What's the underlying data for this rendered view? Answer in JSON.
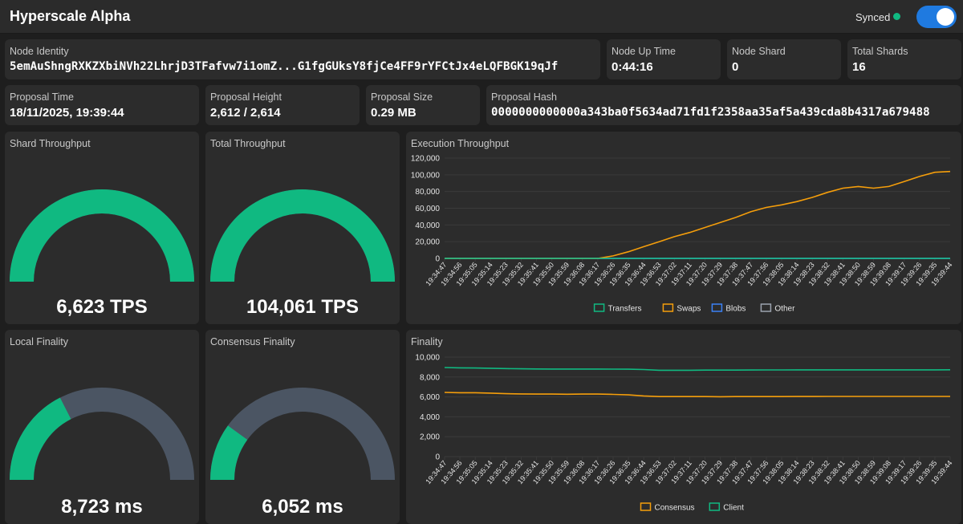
{
  "header": {
    "title": "Hyperscale Alpha",
    "sync_status": "Synced"
  },
  "colors": {
    "green": "#10b981",
    "orange": "#f59e0b",
    "blue": "#3b82f6",
    "slate": "#4b5563",
    "gray": "#9ca3af"
  },
  "info": {
    "node_identity": {
      "label": "Node Identity",
      "value": "5emAuShngRXKZXbiNVh22LhrjD3TFafvw7i1omZ...G1fgGUksY8fjCe4FF9rYFCtJx4eLQFBGK19qJf"
    },
    "node_up_time": {
      "label": "Node Up Time",
      "value": "0:44:16"
    },
    "node_shard": {
      "label": "Node Shard",
      "value": "0"
    },
    "total_shards": {
      "label": "Total Shards",
      "value": "16"
    },
    "proposal_time": {
      "label": "Proposal Time",
      "value": "18/11/2025, 19:39:44"
    },
    "proposal_height": {
      "label": "Proposal Height",
      "value": "2,612 / 2,614"
    },
    "proposal_size": {
      "label": "Proposal Size",
      "value": "0.29 MB"
    },
    "proposal_hash": {
      "label": "Proposal Hash",
      "value": "0000000000000a343ba0f5634ad71fd1f2358aa35af5a439cda8b4317a679488"
    }
  },
  "gauges": {
    "shard_throughput": {
      "label": "Shard Throughput",
      "value": "6,623 TPS",
      "fraction": 1.0
    },
    "total_throughput": {
      "label": "Total Throughput",
      "value": "104,061 TPS",
      "fraction": 1.0
    },
    "local_finality": {
      "label": "Local Finality",
      "value": "8,723 ms",
      "fraction": 0.35
    },
    "consensus_finality": {
      "label": "Consensus Finality",
      "value": "6,052 ms",
      "fraction": 0.2
    }
  },
  "chart_data": [
    {
      "type": "line",
      "title": "Execution Throughput",
      "ylim": [
        0,
        120000
      ],
      "yticks": [
        "0",
        "20,000",
        "40,000",
        "60,000",
        "80,000",
        "100,000",
        "120,000"
      ],
      "categories": [
        "19:34:47",
        "19:34:56",
        "19:35:05",
        "19:35:14",
        "19:35:23",
        "19:35:32",
        "19:35:41",
        "19:35:50",
        "19:35:59",
        "19:36:08",
        "19:36:17",
        "19:36:26",
        "19:36:35",
        "19:36:44",
        "19:36:53",
        "19:37:02",
        "19:37:11",
        "19:37:20",
        "19:37:29",
        "19:37:38",
        "19:37:47",
        "19:37:56",
        "19:38:05",
        "19:38:14",
        "19:38:23",
        "19:38:32",
        "19:38:41",
        "19:38:50",
        "19:38:59",
        "19:39:08",
        "19:39:17",
        "19:39:26",
        "19:39:35",
        "19:39:44"
      ],
      "series": [
        {
          "name": "Transfers",
          "color": "#10b981",
          "values": [
            0,
            0,
            0,
            0,
            0,
            0,
            0,
            0,
            0,
            0,
            0,
            0,
            0,
            0,
            0,
            0,
            0,
            0,
            0,
            0,
            0,
            0,
            0,
            0,
            0,
            0,
            0,
            0,
            0,
            0,
            0,
            0,
            0,
            0
          ]
        },
        {
          "name": "Swaps",
          "color": "#f59e0b",
          "values": [
            0,
            0,
            0,
            0,
            0,
            0,
            0,
            0,
            0,
            0,
            0,
            3000,
            8000,
            14000,
            20000,
            26000,
            31000,
            37000,
            43000,
            49000,
            56000,
            61000,
            64000,
            68000,
            73000,
            79000,
            84000,
            86000,
            84000,
            86000,
            92000,
            98000,
            103000,
            104000
          ]
        },
        {
          "name": "Blobs",
          "color": "#3b82f6",
          "values": [
            0,
            0,
            0,
            0,
            0,
            0,
            0,
            0,
            0,
            0,
            0,
            0,
            0,
            0,
            0,
            0,
            0,
            0,
            0,
            0,
            0,
            0,
            0,
            0,
            0,
            0,
            0,
            0,
            0,
            0,
            0,
            0,
            0,
            0
          ]
        },
        {
          "name": "Other",
          "color": "#9ca3af",
          "values": [
            0,
            0,
            0,
            0,
            0,
            0,
            0,
            0,
            0,
            0,
            0,
            0,
            0,
            0,
            0,
            0,
            0,
            0,
            0,
            0,
            0,
            0,
            0,
            0,
            0,
            0,
            0,
            0,
            0,
            0,
            0,
            0,
            0,
            0
          ]
        }
      ]
    },
    {
      "type": "line",
      "title": "Finality",
      "ylim": [
        0,
        10000
      ],
      "yticks": [
        "0",
        "2,000",
        "4,000",
        "6,000",
        "8,000",
        "10,000"
      ],
      "categories": [
        "19:34:47",
        "19:34:56",
        "19:35:05",
        "19:35:14",
        "19:35:23",
        "19:35:32",
        "19:35:41",
        "19:35:50",
        "19:35:59",
        "19:36:08",
        "19:36:17",
        "19:36:26",
        "19:36:35",
        "19:36:44",
        "19:36:53",
        "19:37:02",
        "19:37:11",
        "19:37:20",
        "19:37:29",
        "19:37:38",
        "19:37:47",
        "19:37:56",
        "19:38:05",
        "19:38:14",
        "19:38:23",
        "19:38:32",
        "19:38:41",
        "19:38:50",
        "19:38:59",
        "19:39:08",
        "19:39:17",
        "19:39:26",
        "19:39:35",
        "19:39:44"
      ],
      "series": [
        {
          "name": "Consensus",
          "color": "#f59e0b",
          "values": [
            6450,
            6420,
            6420,
            6380,
            6320,
            6300,
            6280,
            6280,
            6270,
            6280,
            6280,
            6250,
            6200,
            6100,
            6030,
            6030,
            6030,
            6030,
            6020,
            6030,
            6030,
            6030,
            6030,
            6040,
            6040,
            6050,
            6050,
            6050,
            6050,
            6050,
            6050,
            6050,
            6050,
            6052
          ]
        },
        {
          "name": "Client",
          "color": "#10b981",
          "values": [
            8950,
            8920,
            8900,
            8880,
            8850,
            8820,
            8810,
            8800,
            8800,
            8800,
            8800,
            8790,
            8780,
            8750,
            8680,
            8680,
            8680,
            8690,
            8690,
            8690,
            8700,
            8710,
            8710,
            8720,
            8720,
            8720,
            8720,
            8720,
            8720,
            8720,
            8720,
            8720,
            8720,
            8723
          ]
        }
      ]
    }
  ]
}
